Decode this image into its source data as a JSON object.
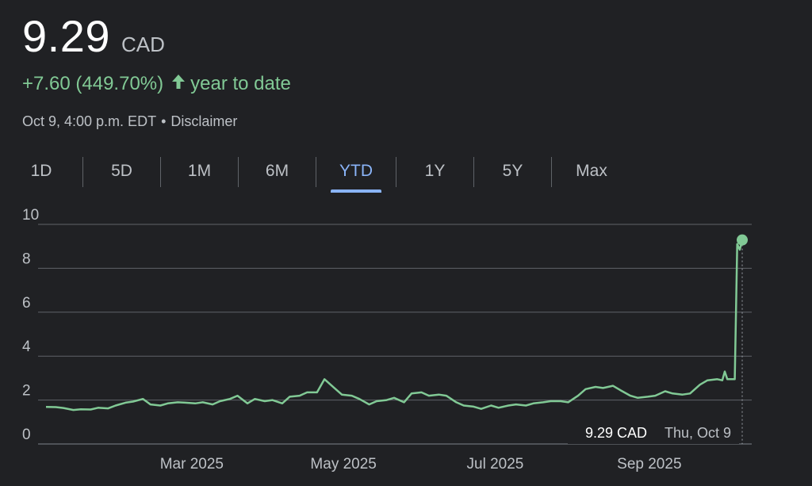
{
  "header": {
    "price": "9.29",
    "currency": "CAD",
    "change": "+7.60 (449.70%)",
    "change_period": "year to date",
    "timestamp": "Oct 9, 4:00 p.m. EDT",
    "separator": "•",
    "disclaimer": "Disclaimer"
  },
  "tabs": [
    {
      "label": "1D",
      "active": false
    },
    {
      "label": "5D",
      "active": false
    },
    {
      "label": "1M",
      "active": false
    },
    {
      "label": "6M",
      "active": false
    },
    {
      "label": "YTD",
      "active": true
    },
    {
      "label": "1Y",
      "active": false
    },
    {
      "label": "5Y",
      "active": false
    },
    {
      "label": "Max",
      "active": false
    }
  ],
  "tooltip": {
    "value": "9.29 CAD",
    "date": "Thu, Oct 9"
  },
  "colors": {
    "line": "#81c995",
    "accent": "#8ab4f8",
    "grid": "#5f6368",
    "background": "#202124"
  },
  "chart_data": {
    "type": "line",
    "title": "",
    "xlabel": "",
    "ylabel": "",
    "ylim": [
      0,
      10
    ],
    "yticks": [
      0,
      2,
      4,
      6,
      8,
      10
    ],
    "xlim": [
      "2025-01-02",
      "2025-10-09"
    ],
    "xticks": [
      {
        "date": "2025-03-01",
        "label": "Mar 2025"
      },
      {
        "date": "2025-05-01",
        "label": "May 2025"
      },
      {
        "date": "2025-07-01",
        "label": "Jul 2025"
      },
      {
        "date": "2025-09-01",
        "label": "Sep 2025"
      }
    ],
    "grid": true,
    "series": [
      {
        "points": [
          [
            "2025-01-02",
            1.69
          ],
          [
            "2025-01-06",
            1.68
          ],
          [
            "2025-01-09",
            1.64
          ],
          [
            "2025-01-13",
            1.55
          ],
          [
            "2025-01-16",
            1.58
          ],
          [
            "2025-01-20",
            1.57
          ],
          [
            "2025-01-23",
            1.65
          ],
          [
            "2025-01-27",
            1.62
          ],
          [
            "2025-01-30",
            1.75
          ],
          [
            "2025-02-03",
            1.88
          ],
          [
            "2025-02-06",
            1.93
          ],
          [
            "2025-02-10",
            2.05
          ],
          [
            "2025-02-13",
            1.8
          ],
          [
            "2025-02-17",
            1.75
          ],
          [
            "2025-02-20",
            1.85
          ],
          [
            "2025-02-24",
            1.9
          ],
          [
            "2025-02-27",
            1.88
          ],
          [
            "2025-03-03",
            1.85
          ],
          [
            "2025-03-06",
            1.9
          ],
          [
            "2025-03-10",
            1.8
          ],
          [
            "2025-03-13",
            1.95
          ],
          [
            "2025-03-17",
            2.05
          ],
          [
            "2025-03-20",
            2.2
          ],
          [
            "2025-03-24",
            1.85
          ],
          [
            "2025-03-27",
            2.05
          ],
          [
            "2025-03-31",
            1.95
          ],
          [
            "2025-04-03",
            2.0
          ],
          [
            "2025-04-07",
            1.85
          ],
          [
            "2025-04-10",
            2.15
          ],
          [
            "2025-04-14",
            2.2
          ],
          [
            "2025-04-17",
            2.35
          ],
          [
            "2025-04-21",
            2.35
          ],
          [
            "2025-04-24",
            2.95
          ],
          [
            "2025-04-28",
            2.55
          ],
          [
            "2025-05-01",
            2.25
          ],
          [
            "2025-05-05",
            2.2
          ],
          [
            "2025-05-08",
            2.05
          ],
          [
            "2025-05-12",
            1.8
          ],
          [
            "2025-05-15",
            1.95
          ],
          [
            "2025-05-19",
            2.0
          ],
          [
            "2025-05-22",
            2.1
          ],
          [
            "2025-05-26",
            1.9
          ],
          [
            "2025-05-29",
            2.3
          ],
          [
            "2025-06-02",
            2.35
          ],
          [
            "2025-06-05",
            2.2
          ],
          [
            "2025-06-09",
            2.25
          ],
          [
            "2025-06-12",
            2.2
          ],
          [
            "2025-06-16",
            1.9
          ],
          [
            "2025-06-19",
            1.75
          ],
          [
            "2025-06-23",
            1.7
          ],
          [
            "2025-06-26",
            1.6
          ],
          [
            "2025-06-30",
            1.75
          ],
          [
            "2025-07-03",
            1.65
          ],
          [
            "2025-07-07",
            1.75
          ],
          [
            "2025-07-10",
            1.8
          ],
          [
            "2025-07-14",
            1.75
          ],
          [
            "2025-07-17",
            1.85
          ],
          [
            "2025-07-21",
            1.9
          ],
          [
            "2025-07-24",
            1.95
          ],
          [
            "2025-07-28",
            1.95
          ],
          [
            "2025-07-31",
            1.9
          ],
          [
            "2025-08-04",
            2.2
          ],
          [
            "2025-08-07",
            2.5
          ],
          [
            "2025-08-11",
            2.6
          ],
          [
            "2025-08-14",
            2.55
          ],
          [
            "2025-08-18",
            2.65
          ],
          [
            "2025-08-21",
            2.45
          ],
          [
            "2025-08-25",
            2.2
          ],
          [
            "2025-08-28",
            2.1
          ],
          [
            "2025-09-01",
            2.15
          ],
          [
            "2025-09-04",
            2.2
          ],
          [
            "2025-09-08",
            2.4
          ],
          [
            "2025-09-11",
            2.3
          ],
          [
            "2025-09-15",
            2.25
          ],
          [
            "2025-09-18",
            2.3
          ],
          [
            "2025-09-22",
            2.7
          ],
          [
            "2025-09-25",
            2.9
          ],
          [
            "2025-09-29",
            2.95
          ],
          [
            "2025-10-01",
            2.9
          ],
          [
            "2025-10-02",
            3.3
          ],
          [
            "2025-10-03",
            2.95
          ],
          [
            "2025-10-06",
            2.95
          ],
          [
            "2025-10-07",
            9.1
          ],
          [
            "2025-10-08",
            8.85
          ],
          [
            "2025-10-09",
            9.29
          ]
        ]
      }
    ]
  }
}
